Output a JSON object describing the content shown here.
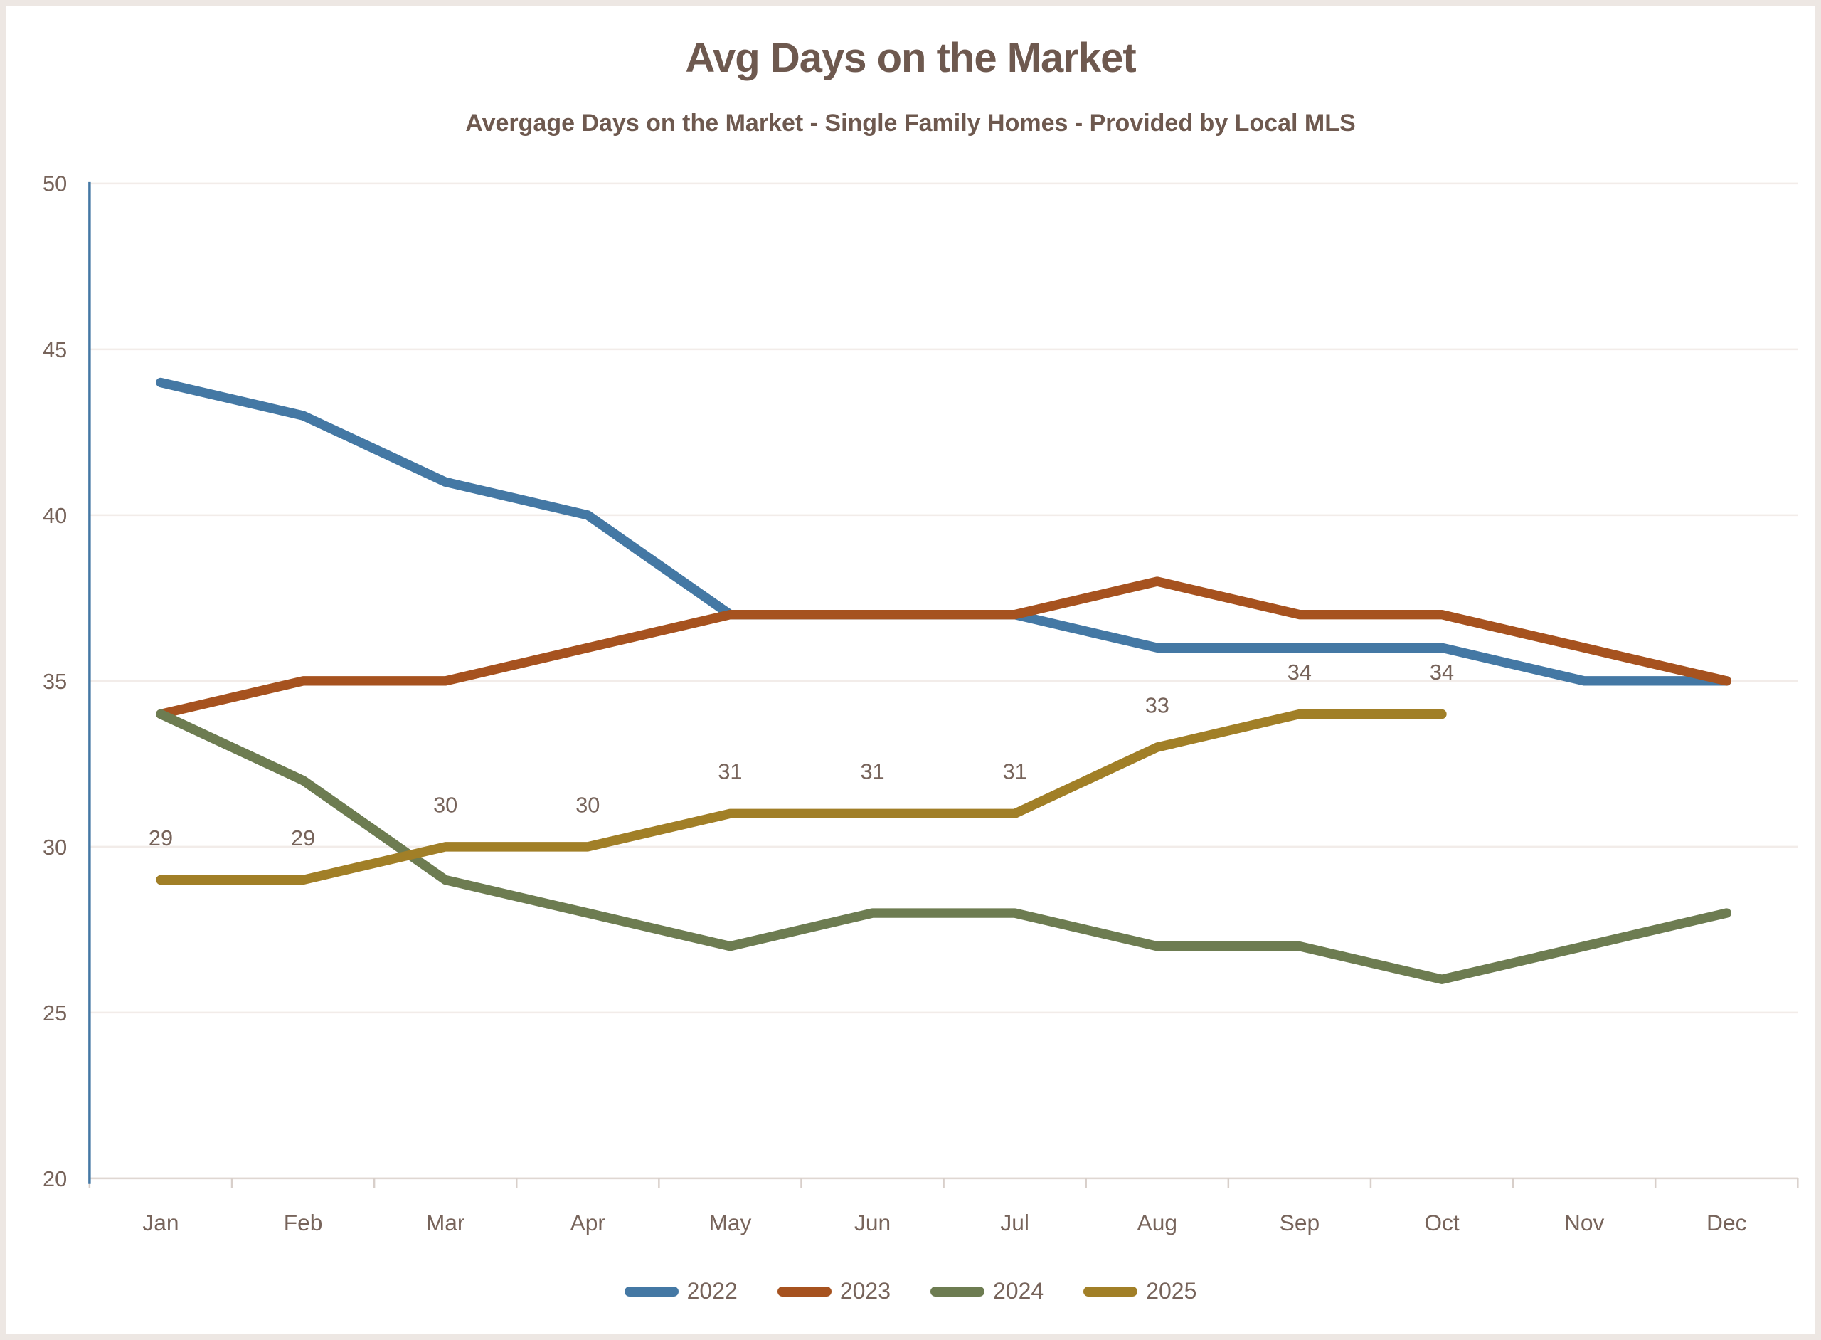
{
  "chart_data": {
    "type": "line",
    "title": "Avg Days on the Market",
    "subtitle": "Avergage Days on the Market - Single Family Homes - Provided by Local MLS",
    "categories": [
      "Jan",
      "Feb",
      "Mar",
      "Apr",
      "May",
      "Jun",
      "Jul",
      "Aug",
      "Sep",
      "Oct",
      "Nov",
      "Dec"
    ],
    "ylim": [
      20,
      50
    ],
    "yticks": [
      20,
      25,
      30,
      35,
      40,
      45,
      50
    ],
    "grid": "horizontal",
    "legend_position": "bottom",
    "series": [
      {
        "name": "2022",
        "color": "#4478A4",
        "values": [
          44,
          43,
          41,
          40,
          37,
          37,
          37,
          36,
          36,
          36,
          35,
          35
        ],
        "show_data_labels": false
      },
      {
        "name": "2023",
        "color": "#A6521F",
        "values": [
          34,
          35,
          35,
          36,
          37,
          37,
          37,
          38,
          37,
          37,
          36,
          35
        ],
        "show_data_labels": false
      },
      {
        "name": "2024",
        "color": "#6D7C51",
        "values": [
          34,
          32,
          29,
          28,
          27,
          28,
          28,
          27,
          27,
          26,
          27,
          28
        ],
        "show_data_labels": false
      },
      {
        "name": "2025",
        "color": "#A17F27",
        "values": [
          29,
          29,
          30,
          30,
          31,
          31,
          31,
          33,
          34,
          34
        ],
        "show_data_labels": true,
        "data_labels": [
          "29",
          "29",
          "30",
          "30",
          "31",
          "31",
          "31",
          "33",
          "34",
          "34"
        ]
      }
    ],
    "style": {
      "title_color": "#6E594F",
      "text_color": "#77645B",
      "gridline_color": "#F2ECE9",
      "x_axis_color": "#DFD7D2",
      "x_tick_color": "#D8CFCA",
      "y_axis_color": "#4478A4",
      "background": "#FFFFFF",
      "border_color": "#EDE7E3"
    }
  }
}
